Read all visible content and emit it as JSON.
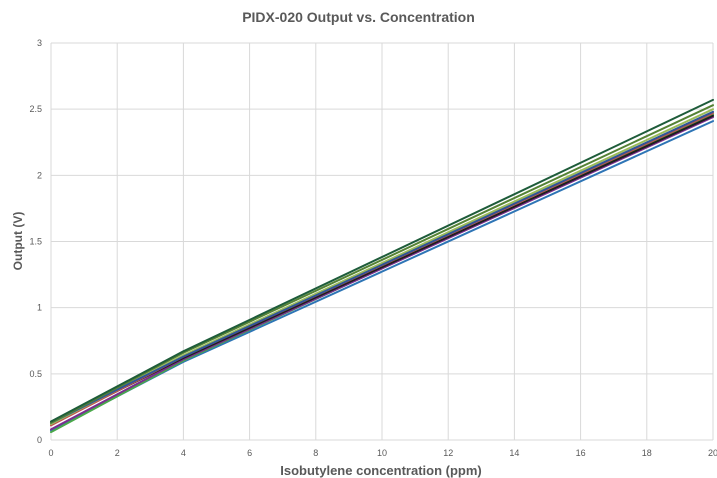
{
  "chart_data": {
    "type": "line",
    "title": "PIDX-020 Output vs. Concentration",
    "xlabel": "Isobutylene concentration (ppm)",
    "ylabel": "Output (V)",
    "xlim": [
      0,
      20
    ],
    "ylim": [
      0,
      3
    ],
    "xticks": [
      "0",
      "2",
      "4",
      "6",
      "8",
      "10",
      "12",
      "14",
      "16",
      "18",
      "20"
    ],
    "yticks": [
      "0",
      "0.5",
      "1",
      "1.5",
      "2",
      "2.5",
      "3"
    ],
    "grid": true,
    "legend": "none",
    "x": [
      0,
      4,
      20
    ],
    "series": [
      {
        "color": "#2e75b6",
        "values": [
          0.07,
          0.59,
          2.41
        ]
      },
      {
        "color": "#4aa84a",
        "values": [
          0.06,
          0.6,
          2.46
        ]
      },
      {
        "color": "#7b2d8e",
        "values": [
          0.08,
          0.61,
          2.44
        ]
      },
      {
        "color": "#1f1f1f",
        "values": [
          0.12,
          0.62,
          2.45
        ]
      },
      {
        "color": "#c0504d",
        "values": [
          0.11,
          0.63,
          2.47
        ]
      },
      {
        "color": "#9bbb59",
        "values": [
          0.12,
          0.64,
          2.5
        ]
      },
      {
        "color": "#2f5597",
        "values": [
          0.13,
          0.63,
          2.48
        ]
      },
      {
        "color": "#548235",
        "values": [
          0.13,
          0.66,
          2.53
        ]
      },
      {
        "color": "#1e5c3a",
        "values": [
          0.14,
          0.67,
          2.57
        ]
      }
    ]
  }
}
